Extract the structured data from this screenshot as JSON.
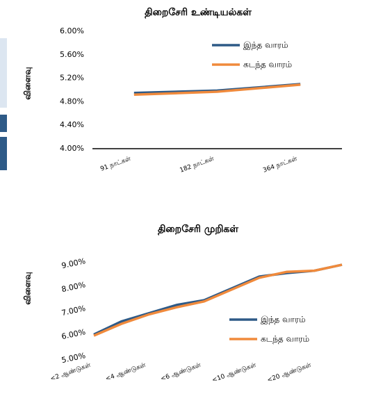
{
  "chart_data": [
    {
      "type": "line",
      "title": "திறைசேரி உண்டியல்கள்",
      "y_label": "விளைவு",
      "categories": [
        "91 நாட்கள்",
        "182 நாட்கள்",
        "364 நாட்கள்"
      ],
      "series": [
        {
          "name": "இந்த வாரம்",
          "color": "#2e5a87",
          "values": [
            4.95,
            4.99,
            5.1
          ]
        },
        {
          "name": "கடந்த வாரம்",
          "color": "#f08a3c",
          "values": [
            4.92,
            4.97,
            5.09
          ]
        }
      ],
      "ylim": [
        4,
        6
      ],
      "yticks": [
        {
          "value": 4,
          "label": "4.00%"
        },
        {
          "value": 4.4,
          "label": "4.40%"
        },
        {
          "value": 4.8,
          "label": "4.80%"
        },
        {
          "value": 5.2,
          "label": "5.20%"
        },
        {
          "value": 5.6,
          "label": "5.60%"
        },
        {
          "value": 6,
          "label": "6.00%"
        }
      ],
      "legend": "upper right"
    },
    {
      "type": "line",
      "title": "திறைசேரி முறிகள்",
      "y_label": "விளைவு",
      "categories": [
        "<2 ஆண்டுகள்",
        null,
        "<4 ஆண்டுகள்",
        null,
        "<6 ஆண்டுகள்",
        null,
        "<10 ஆண்டுகள்",
        null,
        "<20 ஆண்டுகள்",
        null
      ],
      "series": [
        {
          "name": "இந்த வாரம்",
          "color": "#2e5a87",
          "values": [
            5.9,
            6.45,
            6.8,
            7.15,
            7.35,
            7.85,
            8.35,
            8.5,
            8.6,
            8.85
          ]
        },
        {
          "name": "கடந்த வாரம்",
          "color": "#f08a3c",
          "values": [
            5.85,
            6.35,
            6.75,
            7.05,
            7.3,
            7.8,
            8.3,
            8.55,
            8.6,
            8.85
          ]
        }
      ],
      "ylim": [
        5,
        9
      ],
      "yticks": [
        {
          "value": 5,
          "label": "5.00%"
        },
        {
          "value": 6,
          "label": "6.00%"
        },
        {
          "value": 7,
          "label": "7.00%"
        },
        {
          "value": 8,
          "label": "8.00%"
        },
        {
          "value": 9,
          "label": "9.00%"
        }
      ],
      "legend": "lower right"
    }
  ]
}
